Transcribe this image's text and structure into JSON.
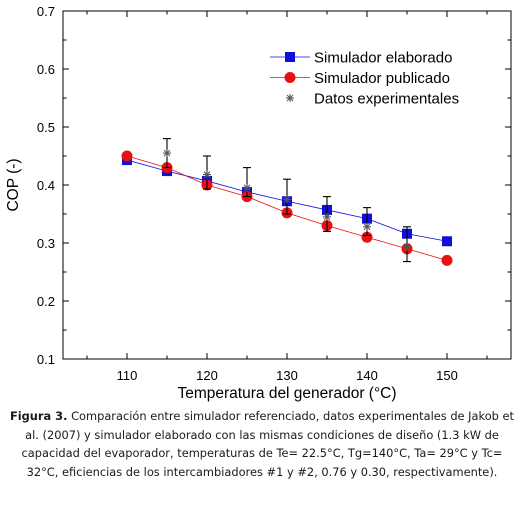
{
  "chart_data": {
    "type": "line",
    "xlabel": "Temperatura del generador (°C)",
    "ylabel": "COP (-)",
    "xlim": [
      102,
      158
    ],
    "ylim": [
      0.1,
      0.7
    ],
    "xticks": [
      110,
      120,
      130,
      140,
      150
    ],
    "yticks": [
      0.1,
      0.2,
      0.3,
      0.4,
      0.5,
      0.6,
      0.7
    ],
    "legend_position": "top-right",
    "series": [
      {
        "name": "Simulador elaborado",
        "marker": "square",
        "color": "#1010d8",
        "x": [
          110,
          115,
          120,
          125,
          130,
          135,
          140,
          145,
          150
        ],
        "y": [
          0.443,
          0.424,
          0.407,
          0.388,
          0.372,
          0.357,
          0.342,
          0.316,
          0.303
        ]
      },
      {
        "name": "Simulador publicado",
        "marker": "circle",
        "color": "#e81010",
        "x": [
          110,
          115,
          120,
          125,
          130,
          135,
          140,
          145,
          150
        ],
        "y": [
          0.45,
          0.43,
          0.4,
          0.38,
          0.352,
          0.33,
          0.31,
          0.29,
          0.27
        ]
      },
      {
        "name": "Datos experimentales",
        "marker": "star",
        "color": "#555555",
        "x": [
          115,
          120,
          125,
          130,
          135,
          140,
          145
        ],
        "y": [
          0.455,
          0.418,
          0.395,
          0.375,
          0.345,
          0.328,
          0.293
        ],
        "err_low": [
          0.025,
          0.025,
          0.015,
          0.025,
          0.025,
          0.015,
          0.025
        ],
        "err_high": [
          0.025,
          0.032,
          0.035,
          0.035,
          0.035,
          0.033,
          0.035
        ]
      }
    ]
  },
  "caption": {
    "label": "Figura 3.",
    "text": " Comparación entre simulador referenciado, datos experimentales de Jakob et al. (2007) y simulador elaborado con las mismas condiciones de diseño (1.3 kW de capacidad del evaporador, temperaturas de Te= 22.5°C,  Tg=140°C, Ta= 29°C y Tc= 32°C, eficiencias de los intercambiadores #1 y #2,  0.76 y 0.30, respectivamente)."
  }
}
